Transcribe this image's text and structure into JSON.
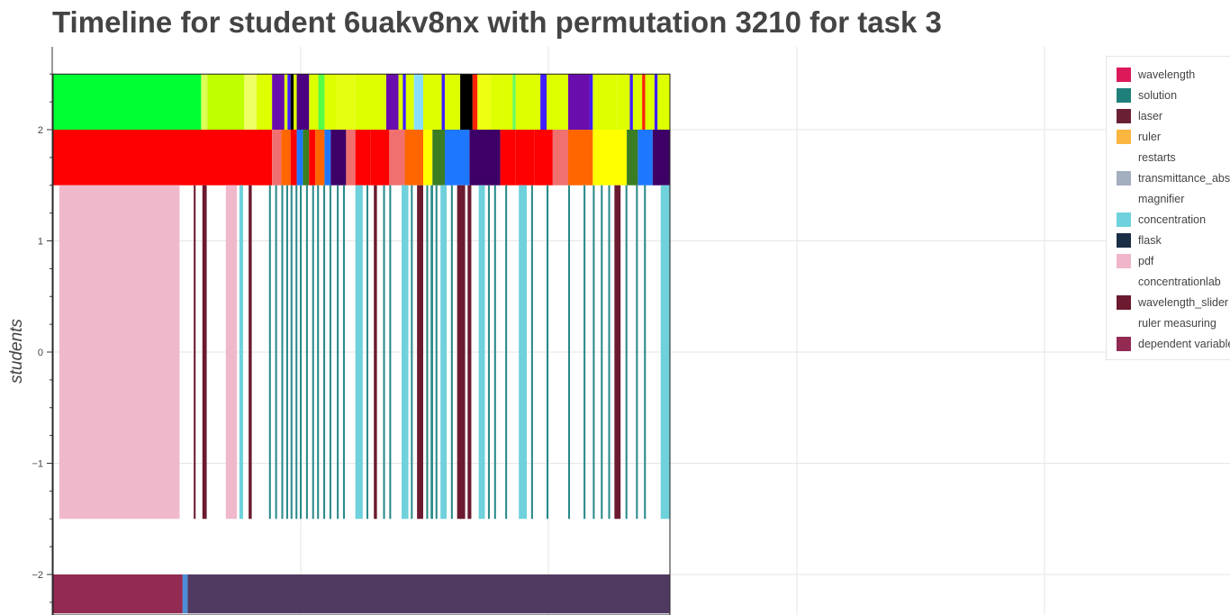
{
  "title": "Timeline for student 6uakv8nx with permutation 3210 for task 3",
  "chart_data": {
    "type": "timeline",
    "title": "Timeline for student 6uakv8nx with permutation 3210 for task 3",
    "ylabel": "students",
    "xlabel": "",
    "ylim": [
      -2.35,
      2.75
    ],
    "x_extent": [
      0,
      1
    ],
    "y_ticks": [
      {
        "value": 2,
        "label": "2"
      },
      {
        "value": 1,
        "label": "1"
      },
      {
        "value": 0,
        "label": "0"
      },
      {
        "value": -1,
        "label": "−1"
      },
      {
        "value": -2,
        "label": "−2"
      }
    ],
    "grid": true,
    "legend_position": "top-right",
    "legend": [
      {
        "label": "wavelength",
        "color": "#DC1A5A"
      },
      {
        "label": "solution",
        "color": "#1F7F7A"
      },
      {
        "label": "laser",
        "color": "#6B1F33"
      },
      {
        "label": "ruler",
        "color": "#FBB541"
      },
      {
        "label": "restarts",
        "color": ""
      },
      {
        "label": "transmittance_absorbance",
        "color": "#A3AEBE"
      },
      {
        "label": "magnifier",
        "color": ""
      },
      {
        "label": "concentration",
        "color": "#6FD1DB"
      },
      {
        "label": "flask",
        "color": "#1A2E45"
      },
      {
        "label": "pdf",
        "color": "#F0B5CA"
      },
      {
        "label": "concentrationlab",
        "color": ""
      },
      {
        "label": "wavelength_slider",
        "color": "#6B1A30"
      },
      {
        "label": "ruler measuring",
        "color": ""
      },
      {
        "label": "dependent variable",
        "color": "#922A52"
      }
    ],
    "bands": [
      {
        "y_range": [
          2,
          2.5
        ],
        "segments": [
          {
            "start": 0,
            "end": 0.24,
            "color": "#00FF33"
          },
          {
            "start": 0.24,
            "end": 0.25,
            "color": "#DDFF55"
          },
          {
            "start": 0.25,
            "end": 0.31,
            "color": "#BFFF00"
          },
          {
            "start": 0.31,
            "end": 0.33,
            "color": "#EEFF66"
          },
          {
            "start": 0.33,
            "end": 0.355,
            "color": "#DDFF00"
          },
          {
            "start": 0.355,
            "end": 0.375,
            "color": "#6A0DAD"
          },
          {
            "start": 0.375,
            "end": 0.38,
            "color": "#DDFF00"
          },
          {
            "start": 0.38,
            "end": 0.385,
            "color": "#3F1DFF"
          },
          {
            "start": 0.385,
            "end": 0.39,
            "color": "#000000"
          },
          {
            "start": 0.39,
            "end": 0.395,
            "color": "#DDFF00"
          },
          {
            "start": 0.395,
            "end": 0.415,
            "color": "#4B0082"
          },
          {
            "start": 0.415,
            "end": 0.43,
            "color": "#DDFF00"
          },
          {
            "start": 0.43,
            "end": 0.44,
            "color": "#55FF44"
          },
          {
            "start": 0.44,
            "end": 0.46,
            "color": "#DDFF00"
          },
          {
            "start": 0.46,
            "end": 0.49,
            "color": "#E5FF11"
          },
          {
            "start": 0.49,
            "end": 0.54,
            "color": "#DDFF00"
          },
          {
            "start": 0.54,
            "end": 0.56,
            "color": "#6A0DAD"
          },
          {
            "start": 0.56,
            "end": 0.567,
            "color": "#DDFF00"
          },
          {
            "start": 0.567,
            "end": 0.572,
            "color": "#3F1DFF"
          },
          {
            "start": 0.572,
            "end": 0.585,
            "color": "#DDFF00"
          },
          {
            "start": 0.585,
            "end": 0.6,
            "color": "#88DDFF"
          },
          {
            "start": 0.6,
            "end": 0.63,
            "color": "#DDFF00"
          },
          {
            "start": 0.63,
            "end": 0.635,
            "color": "#3F1DFF"
          },
          {
            "start": 0.635,
            "end": 0.66,
            "color": "#DDFF00"
          },
          {
            "start": 0.66,
            "end": 0.68,
            "color": "#000000"
          },
          {
            "start": 0.68,
            "end": 0.688,
            "color": "#FF2200"
          },
          {
            "start": 0.688,
            "end": 0.71,
            "color": "#EEFF11"
          },
          {
            "start": 0.71,
            "end": 0.73,
            "color": "#DDFF00"
          },
          {
            "start": 0.73,
            "end": 0.745,
            "color": "#DDFF00"
          },
          {
            "start": 0.745,
            "end": 0.75,
            "color": "#66FF55"
          },
          {
            "start": 0.75,
            "end": 0.79,
            "color": "#DDFF00"
          },
          {
            "start": 0.79,
            "end": 0.8,
            "color": "#3F1DFF"
          },
          {
            "start": 0.8,
            "end": 0.835,
            "color": "#DDFF00"
          },
          {
            "start": 0.835,
            "end": 0.87,
            "color": "#6A0DAD"
          },
          {
            "start": 0.87,
            "end": 0.875,
            "color": "#3F1DFF"
          },
          {
            "start": 0.875,
            "end": 0.915,
            "color": "#DDFF00"
          },
          {
            "start": 0.915,
            "end": 0.935,
            "color": "#DDFF00"
          },
          {
            "start": 0.935,
            "end": 0.94,
            "color": "#3F1DFF"
          },
          {
            "start": 0.94,
            "end": 0.955,
            "color": "#DDFF00"
          },
          {
            "start": 0.955,
            "end": 0.96,
            "color": "#FF2200"
          },
          {
            "start": 0.96,
            "end": 0.975,
            "color": "#DDFF00"
          },
          {
            "start": 0.975,
            "end": 0.98,
            "color": "#3F1DFF"
          },
          {
            "start": 0.98,
            "end": 1,
            "color": "#DDFF00"
          }
        ]
      },
      {
        "y_range": [
          1.5,
          2
        ],
        "segments": [
          {
            "start": 0,
            "end": 0.355,
            "color": "#FF0000"
          },
          {
            "start": 0.355,
            "end": 0.37,
            "color": "#F07070"
          },
          {
            "start": 0.37,
            "end": 0.385,
            "color": "#FF6600"
          },
          {
            "start": 0.385,
            "end": 0.395,
            "color": "#FF0000"
          },
          {
            "start": 0.395,
            "end": 0.405,
            "color": "#1E78FF"
          },
          {
            "start": 0.405,
            "end": 0.415,
            "color": "#3A7D22"
          },
          {
            "start": 0.415,
            "end": 0.425,
            "color": "#FF0000"
          },
          {
            "start": 0.425,
            "end": 0.44,
            "color": "#FF6600"
          },
          {
            "start": 0.44,
            "end": 0.45,
            "color": "#1E78FF"
          },
          {
            "start": 0.45,
            "end": 0.475,
            "color": "#3D0066"
          },
          {
            "start": 0.475,
            "end": 0.49,
            "color": "#F07070"
          },
          {
            "start": 0.49,
            "end": 0.515,
            "color": "#FF0000"
          },
          {
            "start": 0.515,
            "end": 0.545,
            "color": "#FF0000"
          },
          {
            "start": 0.545,
            "end": 0.57,
            "color": "#F07070"
          },
          {
            "start": 0.57,
            "end": 0.6,
            "color": "#FF6600"
          },
          {
            "start": 0.6,
            "end": 0.615,
            "color": "#FFFF00"
          },
          {
            "start": 0.615,
            "end": 0.635,
            "color": "#3A7D22"
          },
          {
            "start": 0.635,
            "end": 0.675,
            "color": "#1E78FF"
          },
          {
            "start": 0.675,
            "end": 0.725,
            "color": "#3D0066"
          },
          {
            "start": 0.725,
            "end": 0.75,
            "color": "#FF0000"
          },
          {
            "start": 0.75,
            "end": 0.78,
            "color": "#FF0000"
          },
          {
            "start": 0.78,
            "end": 0.81,
            "color": "#FF0000"
          },
          {
            "start": 0.81,
            "end": 0.835,
            "color": "#F07070"
          },
          {
            "start": 0.835,
            "end": 0.875,
            "color": "#FF6600"
          },
          {
            "start": 0.875,
            "end": 0.93,
            "color": "#FFFF00"
          },
          {
            "start": 0.93,
            "end": 0.948,
            "color": "#3A7D22"
          },
          {
            "start": 0.948,
            "end": 0.972,
            "color": "#1E78FF"
          },
          {
            "start": 0.972,
            "end": 1,
            "color": "#3D0066"
          }
        ]
      },
      {
        "y_range": [
          -1.5,
          1.5
        ],
        "segments": [
          {
            "start": 0.01,
            "end": 0.205,
            "color": "#F0B8CB"
          },
          {
            "start": 0.228,
            "end": 0.231,
            "color": "#6B1A30"
          },
          {
            "start": 0.242,
            "end": 0.249,
            "color": "#6B1A30"
          },
          {
            "start": 0.28,
            "end": 0.298,
            "color": "#F0B8CB"
          },
          {
            "start": 0.302,
            "end": 0.308,
            "color": "#6FD1DB"
          },
          {
            "start": 0.317,
            "end": 0.322,
            "color": "#6B1A30"
          },
          {
            "start": 0.35,
            "end": 0.353,
            "color": "#2A8A8A"
          },
          {
            "start": 0.36,
            "end": 0.363,
            "color": "#2A8A8A"
          },
          {
            "start": 0.37,
            "end": 0.373,
            "color": "#2A8A8A"
          },
          {
            "start": 0.378,
            "end": 0.381,
            "color": "#2A8A8A"
          },
          {
            "start": 0.385,
            "end": 0.388,
            "color": "#2A8A8A"
          },
          {
            "start": 0.393,
            "end": 0.396,
            "color": "#2A8A8A"
          },
          {
            "start": 0.4,
            "end": 0.403,
            "color": "#2A8A8A"
          },
          {
            "start": 0.41,
            "end": 0.413,
            "color": "#2A8A8A"
          },
          {
            "start": 0.42,
            "end": 0.423,
            "color": "#2A8A8A"
          },
          {
            "start": 0.428,
            "end": 0.431,
            "color": "#2A8A8A"
          },
          {
            "start": 0.438,
            "end": 0.441,
            "color": "#2A8A8A"
          },
          {
            "start": 0.448,
            "end": 0.451,
            "color": "#2A8A8A"
          },
          {
            "start": 0.46,
            "end": 0.463,
            "color": "#2A8A8A"
          },
          {
            "start": 0.47,
            "end": 0.473,
            "color": "#2A8A8A"
          },
          {
            "start": 0.49,
            "end": 0.502,
            "color": "#6FD1DB"
          },
          {
            "start": 0.508,
            "end": 0.511,
            "color": "#2A8A8A"
          },
          {
            "start": 0.52,
            "end": 0.525,
            "color": "#6B1A30"
          },
          {
            "start": 0.535,
            "end": 0.538,
            "color": "#2A8A8A"
          },
          {
            "start": 0.545,
            "end": 0.548,
            "color": "#2A8A8A"
          },
          {
            "start": 0.565,
            "end": 0.576,
            "color": "#6FD1DB"
          },
          {
            "start": 0.58,
            "end": 0.583,
            "color": "#2A8A8A"
          },
          {
            "start": 0.59,
            "end": 0.6,
            "color": "#6B1A30"
          },
          {
            "start": 0.605,
            "end": 0.608,
            "color": "#2A8A8A"
          },
          {
            "start": 0.612,
            "end": 0.616,
            "color": "#2A8A8A"
          },
          {
            "start": 0.62,
            "end": 0.623,
            "color": "#2A8A8A"
          },
          {
            "start": 0.628,
            "end": 0.638,
            "color": "#6FD1DB"
          },
          {
            "start": 0.645,
            "end": 0.648,
            "color": "#2A8A8A"
          },
          {
            "start": 0.655,
            "end": 0.668,
            "color": "#6B1A30"
          },
          {
            "start": 0.672,
            "end": 0.678,
            "color": "#6B1A30"
          },
          {
            "start": 0.69,
            "end": 0.7,
            "color": "#6FD1DB"
          },
          {
            "start": 0.705,
            "end": 0.708,
            "color": "#2A8A8A"
          },
          {
            "start": 0.715,
            "end": 0.718,
            "color": "#2A8A8A"
          },
          {
            "start": 0.733,
            "end": 0.736,
            "color": "#2A8A8A"
          },
          {
            "start": 0.755,
            "end": 0.768,
            "color": "#6FD1DB"
          },
          {
            "start": 0.775,
            "end": 0.778,
            "color": "#2A8A8A"
          },
          {
            "start": 0.8,
            "end": 0.803,
            "color": "#2A8A8A"
          },
          {
            "start": 0.835,
            "end": 0.838,
            "color": "#2A8A8A"
          },
          {
            "start": 0.86,
            "end": 0.863,
            "color": "#2A8A8A"
          },
          {
            "start": 0.875,
            "end": 0.878,
            "color": "#2A8A8A"
          },
          {
            "start": 0.888,
            "end": 0.891,
            "color": "#2A8A8A"
          },
          {
            "start": 0.9,
            "end": 0.903,
            "color": "#2A8A8A"
          },
          {
            "start": 0.91,
            "end": 0.92,
            "color": "#6B1A30"
          },
          {
            "start": 0.928,
            "end": 0.931,
            "color": "#2A8A8A"
          },
          {
            "start": 0.945,
            "end": 0.948,
            "color": "#2A8A8A"
          },
          {
            "start": 0.958,
            "end": 0.961,
            "color": "#2A8A8A"
          },
          {
            "start": 0.985,
            "end": 1,
            "color": "#6FD1DB"
          }
        ]
      },
      {
        "y_range": [
          -2.35,
          -2
        ],
        "segments": [
          {
            "start": 0,
            "end": 0.21,
            "color": "#922A52"
          },
          {
            "start": 0.21,
            "end": 0.218,
            "color": "#4A8FD8"
          },
          {
            "start": 0.218,
            "end": 1,
            "color": "#513A62"
          }
        ]
      }
    ]
  }
}
